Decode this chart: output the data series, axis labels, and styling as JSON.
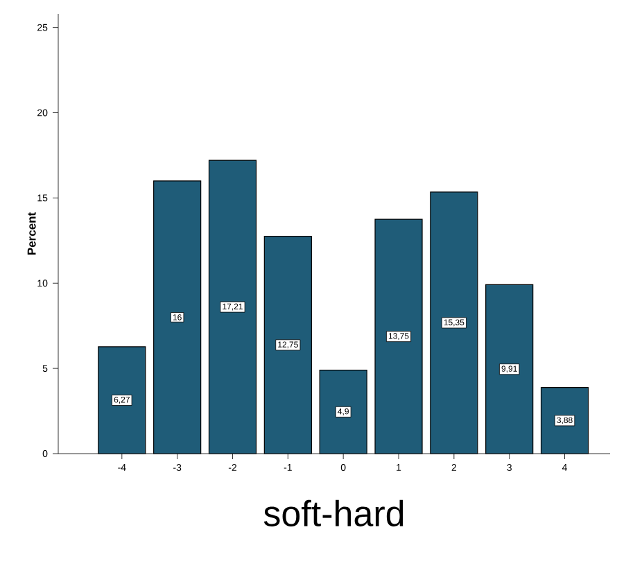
{
  "chart_data": {
    "type": "bar",
    "xlabel": "soft-hard",
    "ylabel": "Percent",
    "categories": [
      "-4",
      "-3",
      "-2",
      "-1",
      "0",
      "1",
      "2",
      "3",
      "4"
    ],
    "values": [
      6.27,
      16,
      17.21,
      12.75,
      4.9,
      13.75,
      15.35,
      9.91,
      3.88
    ],
    "value_labels": [
      "6,27",
      "16",
      "17,21",
      "12,75",
      "4,9",
      "13,75",
      "15,35",
      "9,91",
      "3,88"
    ],
    "color": "#1f5c78",
    "ylim": [
      0,
      25.8
    ],
    "yticks": [
      0,
      5,
      10,
      15,
      20,
      25
    ]
  }
}
